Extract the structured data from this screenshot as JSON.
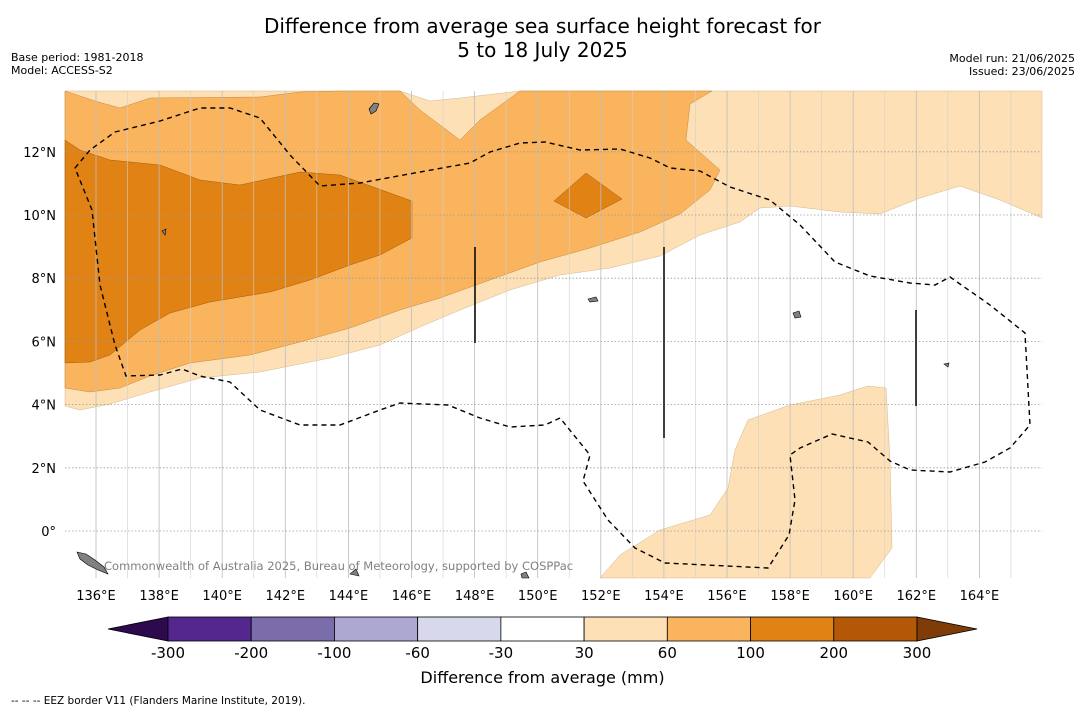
{
  "title_line1": "Difference from average sea surface height forecast for",
  "title_line2": "5 to 18 July 2025",
  "base_period": "Base period: 1981-2018",
  "model": "Model: ACCESS-S2",
  "model_run": "Model run: 21/06/2025",
  "issued": "Issued: 23/06/2025",
  "credit": "Commonwealth of Australia 2025, Bureau of Meteorology, supported by COSPPac",
  "colorbar": {
    "title": "Difference from average (mm)",
    "ticks": [
      "-300",
      "-200",
      "-100",
      "-60",
      "-30",
      "30",
      "60",
      "100",
      "200",
      "300"
    ],
    "colors": [
      "#2d0a4e",
      "#54278f",
      "#7b6daa",
      "#ada8d1",
      "#d8d8ec",
      "#ffffff",
      "#fee0b6",
      "#fbb45e",
      "#e08214",
      "#b35806",
      "#7f3b08"
    ]
  },
  "eez_note": "--  --  -- EEZ border V11 (Flanders Marine Institute, 2019).",
  "axes": {
    "x_ticks": [
      "136°E",
      "138°E",
      "140°E",
      "142°E",
      "144°E",
      "146°E",
      "148°E",
      "150°E",
      "152°E",
      "154°E",
      "156°E",
      "158°E",
      "160°E",
      "162°E",
      "164°E"
    ],
    "y_ticks": [
      "0°",
      "2°N",
      "4°N",
      "6°N",
      "8°N",
      "10°N",
      "12°N"
    ]
  }
}
